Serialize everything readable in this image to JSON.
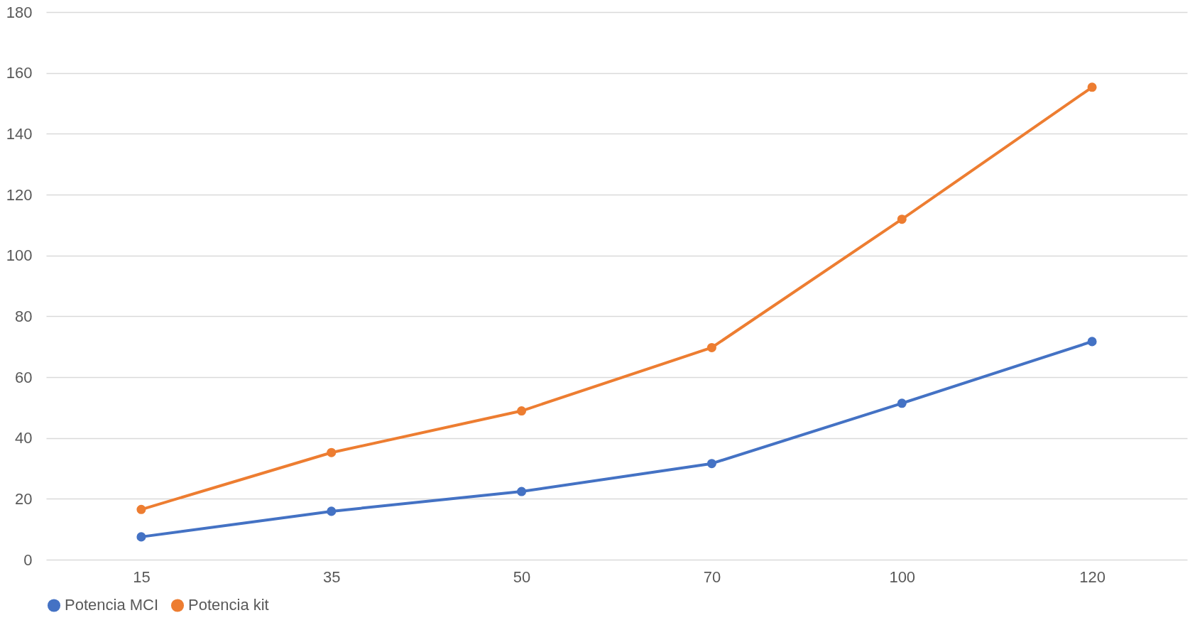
{
  "chart_data": {
    "type": "line",
    "categories": [
      "15",
      "35",
      "50",
      "70",
      "100",
      "120"
    ],
    "series": [
      {
        "name": "Potencia MCI",
        "color": "#4472c4",
        "values": [
          7.5,
          15.9,
          22.4,
          31.6,
          51.4,
          71.7
        ]
      },
      {
        "name": "Potencia kit",
        "color": "#ed7d31",
        "values": [
          16.5,
          35.2,
          48.9,
          69.7,
          111.9,
          155.3
        ]
      }
    ],
    "ylim": [
      0,
      180
    ],
    "yticks": [
      0,
      20,
      40,
      60,
      80,
      100,
      120,
      140,
      160,
      180
    ],
    "grid": "y",
    "legend": "bottom",
    "marker": "circle",
    "line_style": "solid"
  }
}
